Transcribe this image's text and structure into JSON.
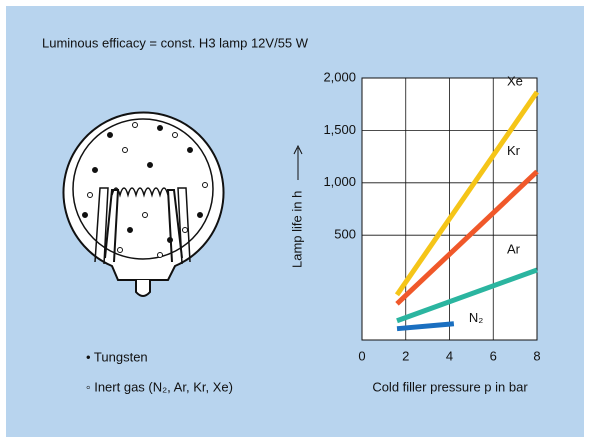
{
  "header": {
    "title": "Luminous efficacy = const. H3 lamp 12V/55 W"
  },
  "diagram": {
    "legend": [
      "• Tungsten",
      "◦ Inert gas (N₂, Ar, Kr, Xe)"
    ]
  },
  "chart_data": {
    "type": "line",
    "x_label": "Cold filler pressure p in bar",
    "y_label": "Lamp life in h",
    "xlim": [
      0,
      8
    ],
    "xticks": [
      0,
      2,
      4,
      6,
      8
    ],
    "ylim": [
      -500,
      2000
    ],
    "yticks": [
      500,
      {
        "value": 1000,
        "label": "1,000"
      },
      {
        "value": 1500,
        "label": "1,500"
      },
      {
        "value": 2000,
        "label": "2,000"
      }
    ],
    "grid": true,
    "series": [
      {
        "name": "Xe",
        "color": "#f5c518",
        "x": [
          1.6,
          8
        ],
        "values": [
          -69,
          1866
        ]
      },
      {
        "name": "Kr",
        "color": "#f0582a",
        "x": [
          1.6,
          8
        ],
        "values": [
          -155,
          1107
        ]
      },
      {
        "name": "Ar",
        "color": "#2bb5a0",
        "x": [
          1.6,
          8
        ],
        "values": [
          -316,
          168
        ]
      },
      {
        "name": "N₂",
        "color": "#1a6fc0",
        "x": [
          1.6,
          4.2
        ],
        "values": [
          -392,
          -345
        ]
      }
    ]
  }
}
